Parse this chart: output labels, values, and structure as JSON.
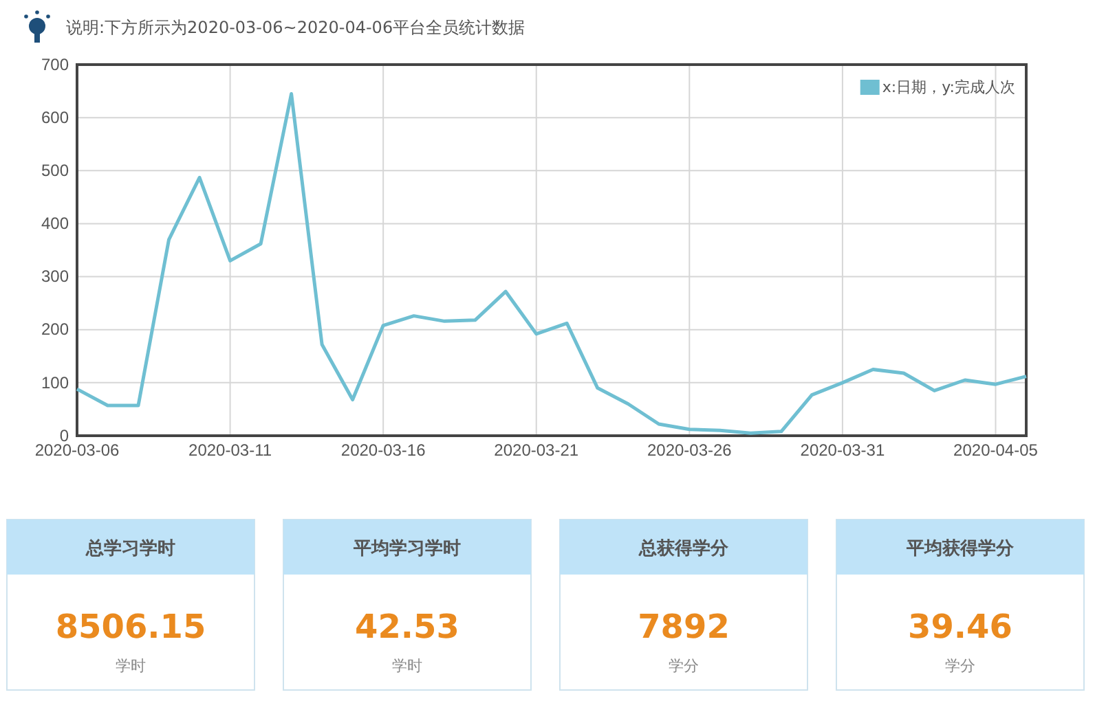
{
  "chart_data": [
    {
      "type": "line",
      "title": "说明:下方所示为2020-03-06~2020-04-06平台全员统计数据",
      "x": [
        "2020-03-06",
        "2020-03-07",
        "2020-03-08",
        "2020-03-09",
        "2020-03-10",
        "2020-03-11",
        "2020-03-12",
        "2020-03-13",
        "2020-03-14",
        "2020-03-15",
        "2020-03-16",
        "2020-03-17",
        "2020-03-18",
        "2020-03-19",
        "2020-03-20",
        "2020-03-21",
        "2020-03-22",
        "2020-03-23",
        "2020-03-24",
        "2020-03-25",
        "2020-03-26",
        "2020-03-27",
        "2020-03-28",
        "2020-03-29",
        "2020-03-30",
        "2020-03-31",
        "2020-04-01",
        "2020-04-02",
        "2020-04-03",
        "2020-04-04",
        "2020-04-05",
        "2020-04-06"
      ],
      "series": [
        {
          "name": "x:日期，y:完成人次",
          "color": "#6fbfd2",
          "values": [
            88,
            57,
            57,
            370,
            487,
            330,
            362,
            645,
            172,
            68,
            208,
            226,
            216,
            218,
            272,
            192,
            212,
            90,
            60,
            22,
            12,
            10,
            5,
            8,
            77,
            100,
            125,
            118,
            85,
            105,
            97,
            112
          ]
        }
      ],
      "xlim": [
        "2020-03-06",
        "2020-04-06"
      ],
      "xticks": [
        {
          "value": "2020-03-06",
          "label": "2020-03-06"
        },
        {
          "value": "2020-03-11",
          "label": "2020-03-11"
        },
        {
          "value": "2020-03-16",
          "label": "2020-03-16"
        },
        {
          "value": "2020-03-21",
          "label": "2020-03-21"
        },
        {
          "value": "2020-03-26",
          "label": "2020-03-26"
        },
        {
          "value": "2020-03-31",
          "label": "2020-03-31"
        },
        {
          "value": "2020-04-05",
          "label": "2020-04-05"
        }
      ],
      "ylim": [
        0,
        700
      ],
      "yticks": [
        0,
        100,
        200,
        300,
        400,
        500,
        600,
        700
      ],
      "grid": true,
      "legend": "top right",
      "marker": "none",
      "line_style": "solid"
    },
    {
      "type": "other",
      "categories": [
        "总学习学时",
        "平均学习学时",
        "总获得学分",
        "平均获得学分"
      ],
      "values": [
        8506.15,
        42.53,
        7892,
        39.46
      ],
      "data_labels": true,
      "annotations": [
        "学时",
        "学时",
        "学分",
        "学分"
      ]
    }
  ]
}
